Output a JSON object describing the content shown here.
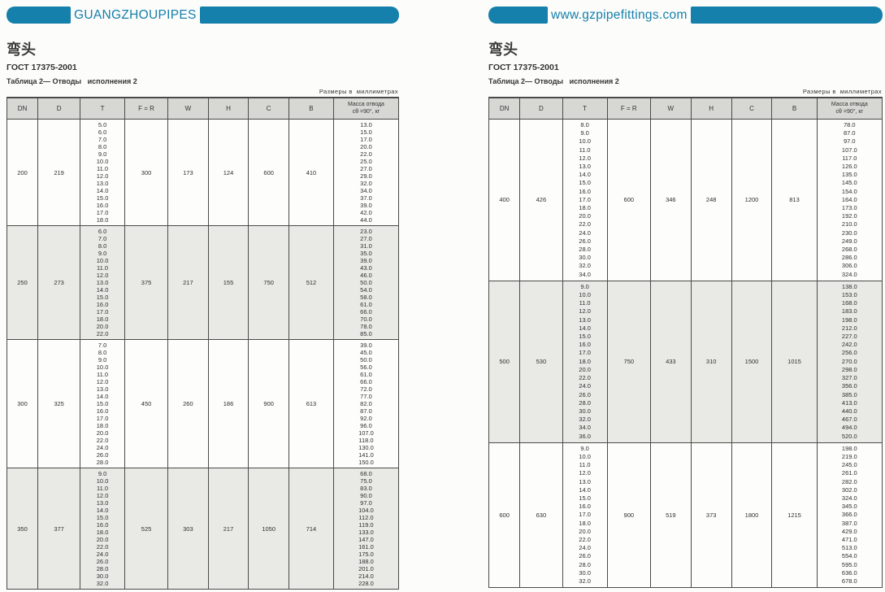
{
  "accent_color": "#1580ab",
  "pages": [
    {
      "banner": "GUANGZHOUPIPES",
      "title": "弯头",
      "standard": "ГОСТ 17375-2001",
      "caption": "Таблица 2— Отводы   исполнения 2",
      "units_note": "Размеры в  миллиметрах",
      "columns": [
        "DN",
        "D",
        "T",
        "F = R",
        "W",
        "H",
        "C",
        "B"
      ],
      "mass_header": [
        "Масса  отвода",
        "сθ =90°, кг"
      ],
      "rows": [
        {
          "dn": "200",
          "d": "219",
          "fr": "300",
          "w": "173",
          "h": "124",
          "c": "600",
          "b": "410",
          "shaded": false,
          "t": [
            "5.0",
            "6.0",
            "7.0",
            "8.0",
            "9.0",
            "10.0",
            "11.0",
            "12.0",
            "13.0",
            "14.0",
            "15.0",
            "16.0",
            "17.0",
            "18.0"
          ],
          "mass": [
            "13.0",
            "15.0",
            "17.0",
            "20.0",
            "22.0",
            "25.0",
            "27.0",
            "29.0",
            "32.0",
            "34.0",
            "37.0",
            "39.0",
            "42.0",
            "44.0"
          ]
        },
        {
          "dn": "250",
          "d": "273",
          "fr": "375",
          "w": "217",
          "h": "155",
          "c": "750",
          "b": "512",
          "shaded": true,
          "t": [
            "6.0",
            "7.0",
            "8.0",
            "9.0",
            "10.0",
            "11.0",
            "12.0",
            "13.0",
            "14.0",
            "15.0",
            "16.0",
            "17.0",
            "18.0",
            "20.0",
            "22.0"
          ],
          "mass": [
            "23.0",
            "27.0",
            "31.0",
            "35.0",
            "39.0",
            "43.0",
            "46.0",
            "50.0",
            "54.0",
            "58.0",
            "61.0",
            "66.0",
            "70.0",
            "78.0",
            "85.0"
          ]
        },
        {
          "dn": "300",
          "d": "325",
          "fr": "450",
          "w": "260",
          "h": "186",
          "c": "900",
          "b": "613",
          "shaded": false,
          "t": [
            "7.0",
            "8.0",
            "9.0",
            "10.0",
            "11.0",
            "12.0",
            "13.0",
            "14.0",
            "15.0",
            "16.0",
            "17.0",
            "18.0",
            "20.0",
            "22.0",
            "24.0",
            "26.0",
            "28.0"
          ],
          "mass": [
            "39.0",
            "45.0",
            "50.0",
            "56.0",
            "61.0",
            "66.0",
            "72.0",
            "77.0",
            "82.0",
            "87.0",
            "92.0",
            "96.0",
            "107.0",
            "118.0",
            "130.0",
            "141.0",
            "150.0"
          ]
        },
        {
          "dn": "350",
          "d": "377",
          "fr": "525",
          "w": "303",
          "h": "217",
          "c": "1050",
          "b": "714",
          "shaded": true,
          "t": [
            "9.0",
            "10.0",
            "11.0",
            "12.0",
            "13.0",
            "14.0",
            "15.0",
            "16.0",
            "18.0",
            "20.0",
            "22.0",
            "24.0",
            "26.0",
            "28.0",
            "30.0",
            "32.0"
          ],
          "mass": [
            "68.0",
            "75.0",
            "83.0",
            "90.0",
            "97.0",
            "104.0",
            "112.0",
            "119.0",
            "133.0",
            "147.0",
            "161.0",
            "175.0",
            "188.0",
            "201.0",
            "214.0",
            "228.0"
          ]
        }
      ]
    },
    {
      "banner": "www.gzpipefittings.com",
      "title": "弯头",
      "standard": "ГОСТ 17375-2001",
      "caption": "Таблица 2— Отводы   исполнения 2",
      "units_note": "Размеры в  миллиметрах",
      "columns": [
        "DN",
        "D",
        "T",
        "F = R",
        "W",
        "H",
        "C",
        "B"
      ],
      "mass_header": [
        "Масса  отвода",
        "сθ =90°, кг"
      ],
      "rows": [
        {
          "dn": "400",
          "d": "426",
          "fr": "600",
          "w": "346",
          "h": "248",
          "c": "1200",
          "b": "813",
          "shaded": false,
          "t": [
            "8.0",
            "9.0",
            "10.0",
            "11.0",
            "12.0",
            "13.0",
            "14.0",
            "15.0",
            "16.0",
            "17.0",
            "18.0",
            "20.0",
            "22.0",
            "24.0",
            "26.0",
            "28.0",
            "30.0",
            "32.0",
            "34.0"
          ],
          "mass": [
            "78.0",
            "87.0",
            "97.0",
            "107.0",
            "117.0",
            "126.0",
            "135.0",
            "145.0",
            "154.0",
            "164.0",
            "173.0",
            "192.0",
            "210.0",
            "230.0",
            "249.0",
            "268.0",
            "286.0",
            "306.0",
            "324.0"
          ]
        },
        {
          "dn": "500",
          "d": "530",
          "fr": "750",
          "w": "433",
          "h": "310",
          "c": "1500",
          "b": "1015",
          "shaded": true,
          "t": [
            "9.0",
            "10.0",
            "11.0",
            "12.0",
            "13.0",
            "14.0",
            "15.0",
            "16.0",
            "17.0",
            "18.0",
            "20.0",
            "22.0",
            "24.0",
            "26.0",
            "28.0",
            "30.0",
            "32.0",
            "34.0",
            "36.0"
          ],
          "mass": [
            "138.0",
            "153.0",
            "168.0",
            "183.0",
            "198.0",
            "212.0",
            "227.0",
            "242.0",
            "256.0",
            "270.0",
            "298.0",
            "327.0",
            "356.0",
            "385.0",
            "413.0",
            "440.0",
            "467.0",
            "494.0",
            "520.0"
          ]
        },
        {
          "dn": "600",
          "d": "630",
          "fr": "900",
          "w": "519",
          "h": "373",
          "c": "1800",
          "b": "1215",
          "shaded": false,
          "t": [
            "9.0",
            "10.0",
            "11.0",
            "12.0",
            "13.0",
            "14.0",
            "15.0",
            "16.0",
            "17.0",
            "18.0",
            "20.0",
            "22.0",
            "24.0",
            "26.0",
            "28.0",
            "30.0",
            "32.0"
          ],
          "mass": [
            "198.0",
            "219.0",
            "245.0",
            "261.0",
            "282.0",
            "302.0",
            "324.0",
            "345.0",
            "366.0",
            "387.0",
            "429.0",
            "471.0",
            "513.0",
            "554.0",
            "595.0",
            "636.0",
            "678.0"
          ]
        }
      ]
    }
  ]
}
